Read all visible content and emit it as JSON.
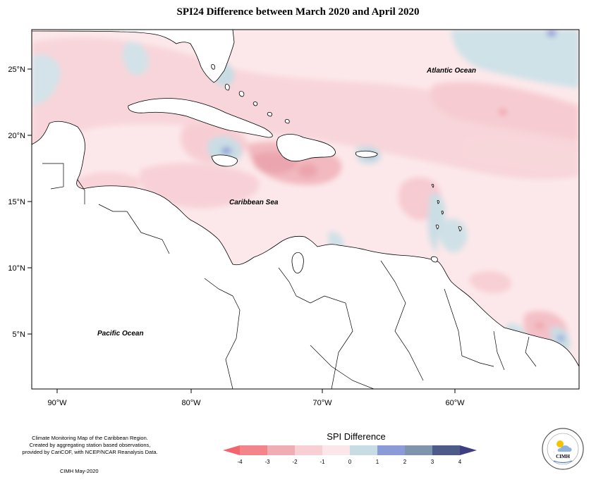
{
  "title": "SPI24 Difference between March 2020 and April 2020",
  "map": {
    "lat_ticks": [
      {
        "value": 25,
        "label": "25°N"
      },
      {
        "value": 20,
        "label": "20°N"
      },
      {
        "value": 15,
        "label": "15°N"
      },
      {
        "value": 10,
        "label": "10°N"
      },
      {
        "value": 5,
        "label": "5°N"
      }
    ],
    "lon_ticks": [
      {
        "value": -90,
        "label": "90°W"
      },
      {
        "value": -80,
        "label": "80°W"
      },
      {
        "value": -70,
        "label": "70°W"
      },
      {
        "value": -60,
        "label": "60°W"
      }
    ],
    "labels": {
      "atlantic": "Atlantic Ocean",
      "caribbean": "Caribbean Sea",
      "pacific": "Pacific Ocean"
    },
    "colors": {
      "land": "#ffffff",
      "coast": "#000000"
    }
  },
  "legend": {
    "title": "SPI Difference",
    "tick_labels": [
      "-4",
      "-3",
      "-2",
      "-1",
      "0",
      "1",
      "2",
      "3",
      "4"
    ],
    "colors": [
      "#f3848c",
      "#f0adb3",
      "#f7cfd4",
      "#fbe6e9",
      "#c7dce3",
      "#8b9bd8",
      "#7f95ad",
      "#4e5a88"
    ],
    "under_color": "#f2646e",
    "over_color": "#3e3e82"
  },
  "footer": {
    "note_line1": "Climate Monitoring Map of the Caribbean Region.",
    "note_line2": "Created by aggregating station based observations,",
    "note_line3": "provided by CariCOF, with NCEP/NCAR Reanalysis Data.",
    "credit": "CIMH May-2020",
    "logo_text": "CIMH"
  }
}
